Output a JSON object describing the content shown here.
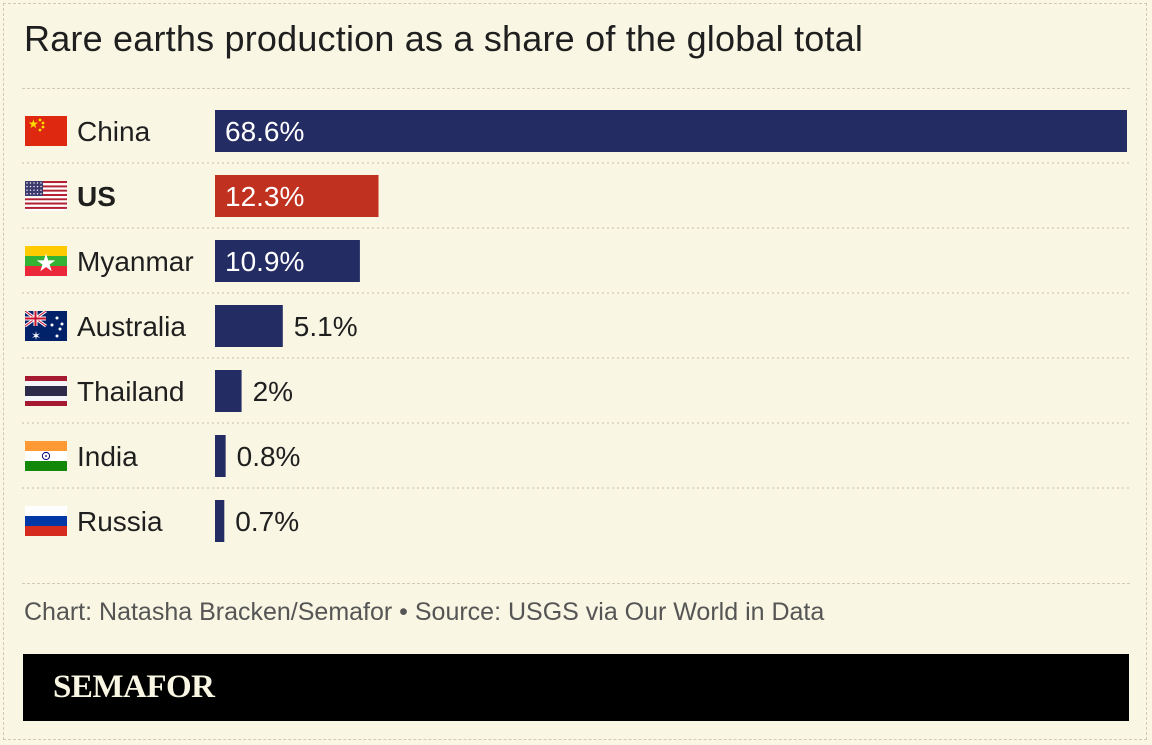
{
  "title": "Rare earths production as a share of the global total",
  "chart_data": {
    "type": "bar",
    "orientation": "horizontal",
    "title": "Rare earths production as a share of the global total",
    "unit": "%",
    "xlim": [
      0,
      68.6
    ],
    "categories": [
      "China",
      "US",
      "Myanmar",
      "Australia",
      "Thailand",
      "India",
      "Russia"
    ],
    "values": [
      68.6,
      12.3,
      10.9,
      5.1,
      2,
      0.8,
      0.7
    ],
    "labels": [
      "68.6%",
      "12.3%",
      "10.9%",
      "5.1%",
      "2%",
      "0.8%",
      "0.7%"
    ],
    "highlight": "US",
    "flag_icons": [
      "china-flag-icon",
      "us-flag-icon",
      "myanmar-flag-icon",
      "australia-flag-icon",
      "thailand-flag-icon",
      "india-flag-icon",
      "russia-flag-icon"
    ],
    "colors": {
      "default": "#232c63",
      "highlight": "#c0311f"
    }
  },
  "credit": "Chart: Natasha Bracken/Semafor • Source: USGS via Our World in Data",
  "brand": "SEMAFOR"
}
